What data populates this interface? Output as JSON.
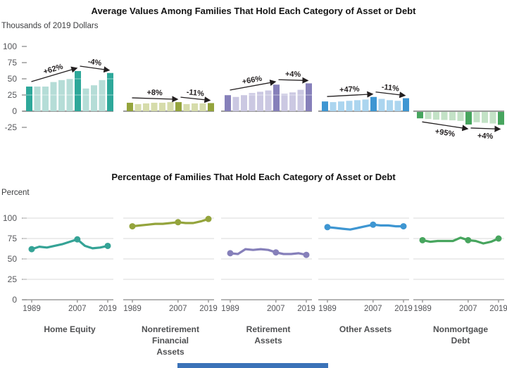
{
  "misc": {
    "bottom_bar_color": "#3b72b8",
    "background": "#ffffff"
  },
  "chart_data": {
    "years": [
      1989,
      1992,
      1995,
      1998,
      2001,
      2004,
      2007,
      2010,
      2013,
      2016,
      2019
    ],
    "marked_year_indices": [
      0,
      6,
      10
    ],
    "x_tick_labels": [
      "1989",
      "2007",
      "2019"
    ],
    "top": {
      "type": "bar",
      "title": "Average Values Among Families That Hold Each Category of Asset or Debt",
      "ylabel": "Thousands of 2019 Dollars",
      "ylim": [
        -25,
        100
      ],
      "y_ticks": [
        100,
        75,
        50,
        25,
        0,
        -25
      ],
      "grid": false,
      "note": "Bars for 1989, 2007 and 2019 are highlighted in the darker shade"
    },
    "bottom": {
      "type": "line",
      "title": "Percentage of Families That Hold Each Category of Asset or Debt",
      "ylabel": "Percent",
      "ylim": [
        0,
        100
      ],
      "y_ticks": [
        100,
        75,
        50,
        25,
        0
      ],
      "grid": true,
      "note": "Dots mark 1989, 2007 and 2019"
    },
    "panels": [
      {
        "name": "Home Equity",
        "label_lines": [
          "Home Equity"
        ],
        "color_dark": "#2ea89a",
        "color_light": "#b5ddd7",
        "line_color": "#35a396",
        "bars": [
          38,
          38,
          38,
          45,
          48,
          50,
          62,
          35,
          40,
          48,
          59
        ],
        "line": [
          62,
          65,
          64,
          66,
          68,
          71,
          74,
          66,
          63,
          64,
          66
        ],
        "annotations": [
          {
            "label": "+62%",
            "from": 0,
            "to": 6,
            "below": false
          },
          {
            "label": "-4%",
            "from": 6,
            "to": 10,
            "below": false
          }
        ]
      },
      {
        "name": "Nonretirement Financial Assets",
        "label_lines": [
          "Nonretirement",
          "Financial",
          "Assets"
        ],
        "color_dark": "#94a43c",
        "color_light": "#d6dcab",
        "line_color": "#94a43c",
        "bars": [
          13,
          11,
          12,
          13,
          13,
          14,
          14,
          11,
          12,
          12,
          12.5
        ],
        "line": [
          90,
          91,
          92,
          93,
          93,
          94,
          95,
          94,
          94,
          96,
          99
        ],
        "annotations": [
          {
            "label": "+8%",
            "from": 0,
            "to": 6,
            "below": false
          },
          {
            "label": "-11%",
            "from": 6,
            "to": 10,
            "below": false
          }
        ]
      },
      {
        "name": "Retirement Assets",
        "label_lines": [
          "Retirement",
          "Assets"
        ],
        "color_dark": "#8680ba",
        "color_light": "#cbc8e2",
        "line_color": "#8680ba",
        "bars": [
          25,
          22,
          25,
          28,
          30,
          32,
          41,
          27,
          29,
          33,
          43
        ],
        "line": [
          57,
          56,
          62,
          61,
          62,
          61,
          58,
          56,
          56,
          57,
          55
        ],
        "annotations": [
          {
            "label": "+66%",
            "from": 0,
            "to": 6,
            "below": false
          },
          {
            "label": "+4%",
            "from": 6,
            "to": 10,
            "below": false
          }
        ]
      },
      {
        "name": "Other Assets",
        "label_lines": [
          "Other Assets"
        ],
        "color_dark": "#3e96d2",
        "color_light": "#abd5ef",
        "line_color": "#3e96d2",
        "bars": [
          15,
          14,
          15,
          16,
          17,
          18,
          22,
          19,
          17,
          16,
          20
        ],
        "line": [
          89,
          88,
          87,
          86,
          88,
          90,
          92,
          91,
          91,
          90,
          90
        ],
        "annotations": [
          {
            "label": "+47%",
            "from": 0,
            "to": 6,
            "below": false
          },
          {
            "label": "-11%",
            "from": 6,
            "to": 10,
            "below": false
          }
        ]
      },
      {
        "name": "Nonmortgage Debt",
        "label_lines": [
          "Nonmortgage",
          "Debt"
        ],
        "color_dark": "#47a55e",
        "color_light": "#c3e2c6",
        "line_color": "#47a55e",
        "bars": [
          -10,
          -11,
          -12,
          -12.5,
          -13,
          -14,
          -19.5,
          -16,
          -17,
          -18,
          -20
        ],
        "line": [
          73,
          71,
          72,
          72,
          72,
          76,
          73,
          72,
          69,
          71,
          75
        ],
        "annotations": [
          {
            "label": "+95%",
            "from": 0,
            "to": 6,
            "below": true
          },
          {
            "label": "+4%",
            "from": 6,
            "to": 10,
            "below": true
          }
        ]
      }
    ]
  }
}
